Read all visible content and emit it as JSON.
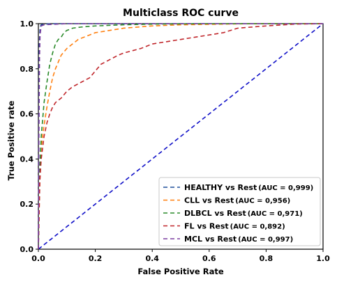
{
  "chart_data": {
    "type": "line",
    "title": "Multiclass ROC curve",
    "xlabel": "False Positive Rate",
    "ylabel": "True Positive rate",
    "xlim": [
      0.0,
      1.0
    ],
    "ylim": [
      0.0,
      1.0
    ],
    "xticks": [
      "0.0",
      "0.2",
      "0.4",
      "0.6",
      "0.8",
      "1.0"
    ],
    "yticks": [
      "0.0",
      "0.2",
      "0.4",
      "0.6",
      "0.8",
      "1.0"
    ],
    "grid": false,
    "legend_position": "bottom-right",
    "series": [
      {
        "name": "HEALTHY vs Rest",
        "auc_label": "(AUC = 0,999)",
        "color": "#1f4e9c",
        "x": [
          0.0,
          0.003,
          0.006,
          0.01,
          0.02,
          0.05,
          0.2,
          1.0
        ],
        "y": [
          0.0,
          0.9,
          0.985,
          0.995,
          0.998,
          1.0,
          1.0,
          1.0
        ]
      },
      {
        "name": "CLL vs Rest",
        "auc_label": "(AUC = 0,956)",
        "color": "#ff7f0e",
        "x": [
          0.0,
          0.005,
          0.01,
          0.02,
          0.03,
          0.04,
          0.05,
          0.06,
          0.07,
          0.08,
          0.1,
          0.12,
          0.14,
          0.16,
          0.18,
          0.2,
          0.25,
          0.3,
          0.35,
          0.4,
          0.5,
          0.6,
          0.7,
          0.8,
          1.0
        ],
        "y": [
          0.0,
          0.3,
          0.45,
          0.55,
          0.63,
          0.7,
          0.76,
          0.8,
          0.83,
          0.86,
          0.89,
          0.91,
          0.93,
          0.94,
          0.95,
          0.96,
          0.97,
          0.98,
          0.985,
          0.99,
          0.995,
          0.997,
          0.999,
          1.0,
          1.0
        ]
      },
      {
        "name": "DLBCL vs Rest",
        "auc_label": "(AUC = 0,971)",
        "color": "#2a8a2a",
        "x": [
          0.0,
          0.005,
          0.01,
          0.02,
          0.03,
          0.04,
          0.05,
          0.06,
          0.07,
          0.08,
          0.09,
          0.1,
          0.12,
          0.15,
          0.2,
          0.3,
          0.4,
          0.6,
          1.0
        ],
        "y": [
          0.0,
          0.35,
          0.5,
          0.65,
          0.74,
          0.82,
          0.87,
          0.91,
          0.93,
          0.94,
          0.96,
          0.97,
          0.98,
          0.985,
          0.99,
          0.995,
          0.998,
          1.0,
          1.0
        ]
      },
      {
        "name": "FL vs Rest",
        "auc_label": "(AUC = 0,892)",
        "color": "#c0262b",
        "x": [
          0.0,
          0.005,
          0.01,
          0.02,
          0.03,
          0.04,
          0.05,
          0.06,
          0.08,
          0.1,
          0.12,
          0.15,
          0.18,
          0.2,
          0.22,
          0.25,
          0.28,
          0.3,
          0.33,
          0.36,
          0.4,
          0.45,
          0.5,
          0.55,
          0.6,
          0.65,
          0.7,
          0.8,
          0.9,
          1.0
        ],
        "y": [
          0.0,
          0.3,
          0.4,
          0.5,
          0.56,
          0.6,
          0.63,
          0.65,
          0.67,
          0.7,
          0.72,
          0.74,
          0.76,
          0.79,
          0.82,
          0.84,
          0.86,
          0.87,
          0.88,
          0.89,
          0.91,
          0.92,
          0.93,
          0.94,
          0.95,
          0.96,
          0.98,
          0.99,
          0.998,
          1.0
        ]
      },
      {
        "name": "MCL vs Rest",
        "auc_label": "(AUC = 0,997)",
        "color": "#7b3fa0",
        "x": [
          0.0,
          0.002,
          0.004,
          0.006,
          0.01,
          0.02,
          0.1,
          1.0
        ],
        "y": [
          0.0,
          0.5,
          0.85,
          0.95,
          0.99,
          0.995,
          1.0,
          1.0
        ]
      }
    ],
    "reference_line": {
      "color": "#1010c8",
      "x": [
        0.0,
        1.0
      ],
      "y": [
        0.0,
        1.0
      ]
    }
  }
}
